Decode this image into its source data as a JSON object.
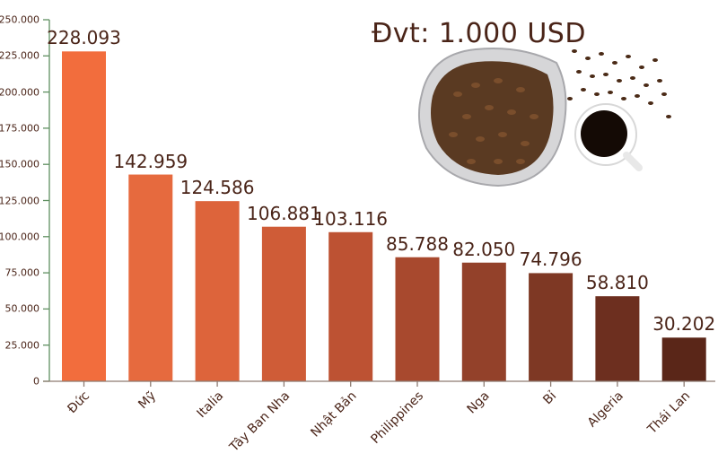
{
  "chart_data": {
    "type": "bar",
    "title": "",
    "unit_note": "Đvt: 1.000 USD",
    "xlabel": "",
    "ylabel": "",
    "ylim": [
      0,
      250000
    ],
    "yticks": [
      "0",
      "25.000",
      "50.000",
      "75.000",
      "100.000",
      "125.000",
      "150.000",
      "175.000",
      "200.000",
      "225.000",
      "250.000"
    ],
    "ytick_values": [
      0,
      25000,
      50000,
      75000,
      100000,
      125000,
      150000,
      175000,
      200000,
      225000,
      250000
    ],
    "categories": [
      "Đức",
      "Mỹ",
      "Italia",
      "Tây Ban Nha",
      "Nhật Bản",
      "Philippines",
      "Nga",
      "Bỉ",
      "Algeria",
      "Thái Lan"
    ],
    "values": [
      228093,
      142959,
      124586,
      106881,
      103116,
      85788,
      82050,
      74796,
      58810,
      30202
    ],
    "value_labels": [
      "228.093",
      "142.959",
      "124.586",
      "106.881",
      "103.116",
      "85.788",
      "82.050",
      "74.796",
      "58.810",
      "30.202"
    ],
    "colors": [
      "#F26D3D",
      "#E66A3E",
      "#DD643B",
      "#CF5C37",
      "#BD5233",
      "#A8492E",
      "#93412A",
      "#7E3824",
      "#6D2F1F",
      "#5A2618"
    ],
    "grid": false,
    "legend": "none"
  },
  "decoration": {
    "image": "coffee-beans-bag-and-cup-illustration"
  }
}
